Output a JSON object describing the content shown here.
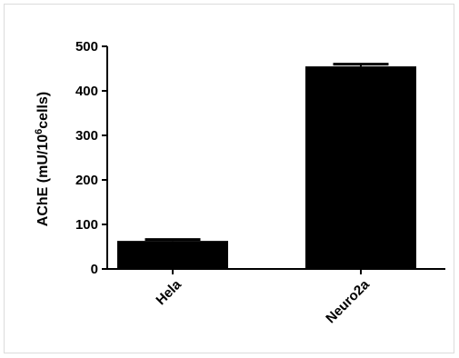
{
  "chart_data": {
    "type": "bar",
    "categories": [
      "Hela",
      "Neuro2a"
    ],
    "values": [
      63,
      455
    ],
    "error_upper": [
      66,
      460
    ],
    "ylabel_parts": {
      "prefix": "AChE (mU/10",
      "superscript": "6",
      "suffix": "cells)"
    },
    "ylim": [
      0,
      500
    ],
    "yticks": [
      0,
      100,
      200,
      300,
      400,
      500
    ],
    "grid": false,
    "legend": "none",
    "bar_color": "#000000"
  }
}
